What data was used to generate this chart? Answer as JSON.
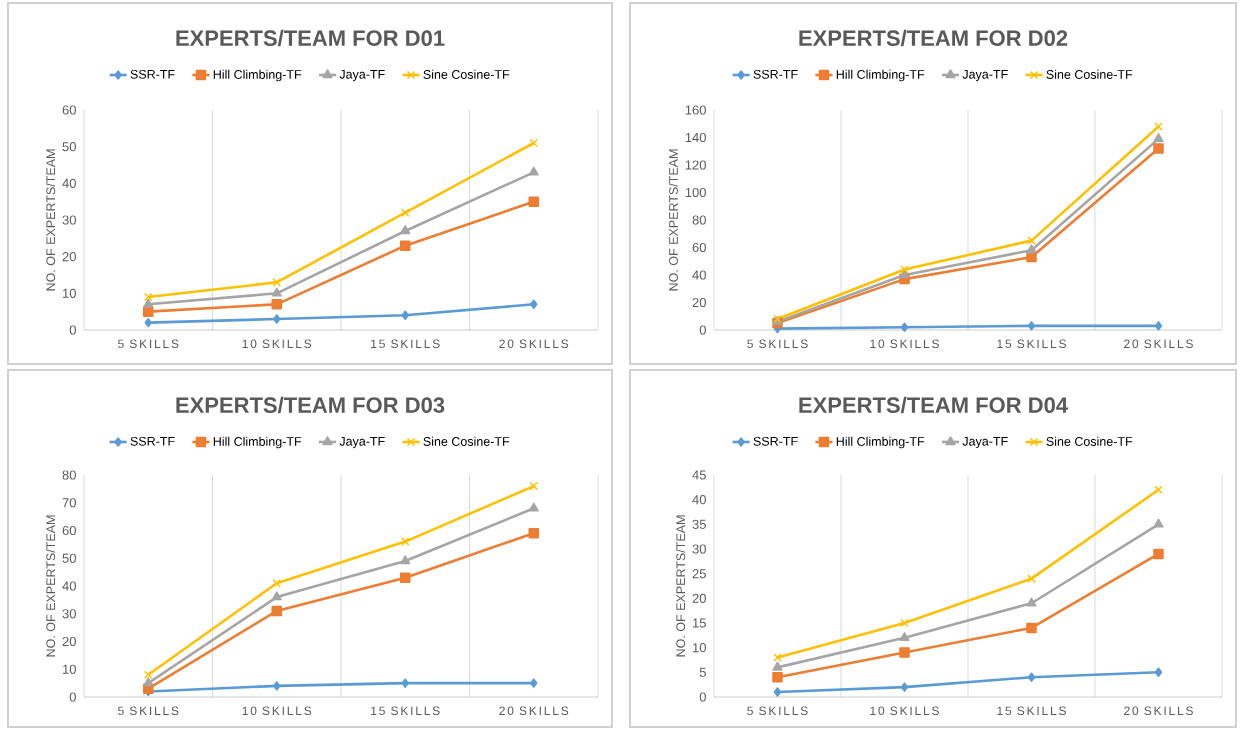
{
  "chart_data": [
    {
      "type": "line",
      "title": "EXPERTS/TEAM FOR D01",
      "ylabel": "NO. OF EXPERTS/TEAM",
      "categories": [
        "5 SKILLS",
        "10 SKILLS",
        "15 SKILLS",
        "20 SKILLS"
      ],
      "ylim": [
        0,
        60
      ],
      "yticks": [
        0,
        10,
        20,
        30,
        40,
        50,
        60
      ],
      "grid": "x",
      "legend": "top",
      "series": [
        {
          "name": "SSR-TF",
          "color": "#5b9bd5",
          "marker": "diamond",
          "values": [
            2,
            3,
            4,
            7
          ]
        },
        {
          "name": "Hill Climbing-TF",
          "color": "#ed7d31",
          "marker": "square",
          "values": [
            5,
            7,
            23,
            35
          ]
        },
        {
          "name": "Jaya-TF",
          "color": "#a5a5a5",
          "marker": "triangle",
          "values": [
            7,
            10,
            27,
            43
          ]
        },
        {
          "name": "Sine Cosine-TF",
          "color": "#ffc000",
          "marker": "cross",
          "values": [
            9,
            13,
            32,
            51
          ]
        }
      ]
    },
    {
      "type": "line",
      "title": "EXPERTS/TEAM FOR D02",
      "ylabel": "NO. OF EXPERTS/TEAM",
      "categories": [
        "5 SKILLS",
        "10 SKILLS",
        "15 SKILLS",
        "20 SKILLS"
      ],
      "ylim": [
        0,
        160
      ],
      "yticks": [
        0,
        20,
        40,
        60,
        80,
        100,
        120,
        140,
        160
      ],
      "grid": "x",
      "legend": "top",
      "series": [
        {
          "name": "SSR-TF",
          "color": "#5b9bd5",
          "marker": "diamond",
          "values": [
            1,
            2,
            3,
            3
          ]
        },
        {
          "name": "Hill Climbing-TF",
          "color": "#ed7d31",
          "marker": "square",
          "values": [
            5,
            37,
            53,
            132
          ]
        },
        {
          "name": "Jaya-TF",
          "color": "#a5a5a5",
          "marker": "triangle",
          "values": [
            6,
            40,
            58,
            139
          ]
        },
        {
          "name": "Sine Cosine-TF",
          "color": "#ffc000",
          "marker": "cross",
          "values": [
            8,
            44,
            65,
            148
          ]
        }
      ]
    },
    {
      "type": "line",
      "title": "EXPERTS/TEAM FOR D03",
      "ylabel": "NO. OF EXPERTS/TEAM",
      "categories": [
        "5 SKILLS",
        "10 SKILLS",
        "15 SKILLS",
        "20 SKILLS"
      ],
      "ylim": [
        0,
        80
      ],
      "yticks": [
        0,
        10,
        20,
        30,
        40,
        50,
        60,
        70,
        80
      ],
      "grid": "x",
      "legend": "top",
      "series": [
        {
          "name": "SSR-TF",
          "color": "#5b9bd5",
          "marker": "diamond",
          "values": [
            2,
            4,
            5,
            5
          ]
        },
        {
          "name": "Hill Climbing-TF",
          "color": "#ed7d31",
          "marker": "square",
          "values": [
            3,
            31,
            43,
            59
          ]
        },
        {
          "name": "Jaya-TF",
          "color": "#a5a5a5",
          "marker": "triangle",
          "values": [
            5,
            36,
            49,
            68
          ]
        },
        {
          "name": "Sine Cosine-TF",
          "color": "#ffc000",
          "marker": "cross",
          "values": [
            8,
            41,
            56,
            76
          ]
        }
      ]
    },
    {
      "type": "line",
      "title": "EXPERTS/TEAM FOR D04",
      "ylabel": "NO. OF EXPERTS/TEAM",
      "categories": [
        "5 SKILLS",
        "10 SKILLS",
        "15 SKILLS",
        "20 SKILLS"
      ],
      "ylim": [
        0,
        45
      ],
      "yticks": [
        0,
        5,
        10,
        15,
        20,
        25,
        30,
        35,
        40,
        45
      ],
      "grid": "x",
      "legend": "top",
      "series": [
        {
          "name": "SSR-TF",
          "color": "#5b9bd5",
          "marker": "diamond",
          "values": [
            1,
            2,
            4,
            5
          ]
        },
        {
          "name": "Hill Climbing-TF",
          "color": "#ed7d31",
          "marker": "square",
          "values": [
            4,
            9,
            14,
            29
          ]
        },
        {
          "name": "Jaya-TF",
          "color": "#a5a5a5",
          "marker": "triangle",
          "values": [
            6,
            12,
            19,
            35
          ]
        },
        {
          "name": "Sine Cosine-TF",
          "color": "#ffc000",
          "marker": "cross",
          "values": [
            8,
            15,
            24,
            42
          ]
        }
      ]
    }
  ]
}
